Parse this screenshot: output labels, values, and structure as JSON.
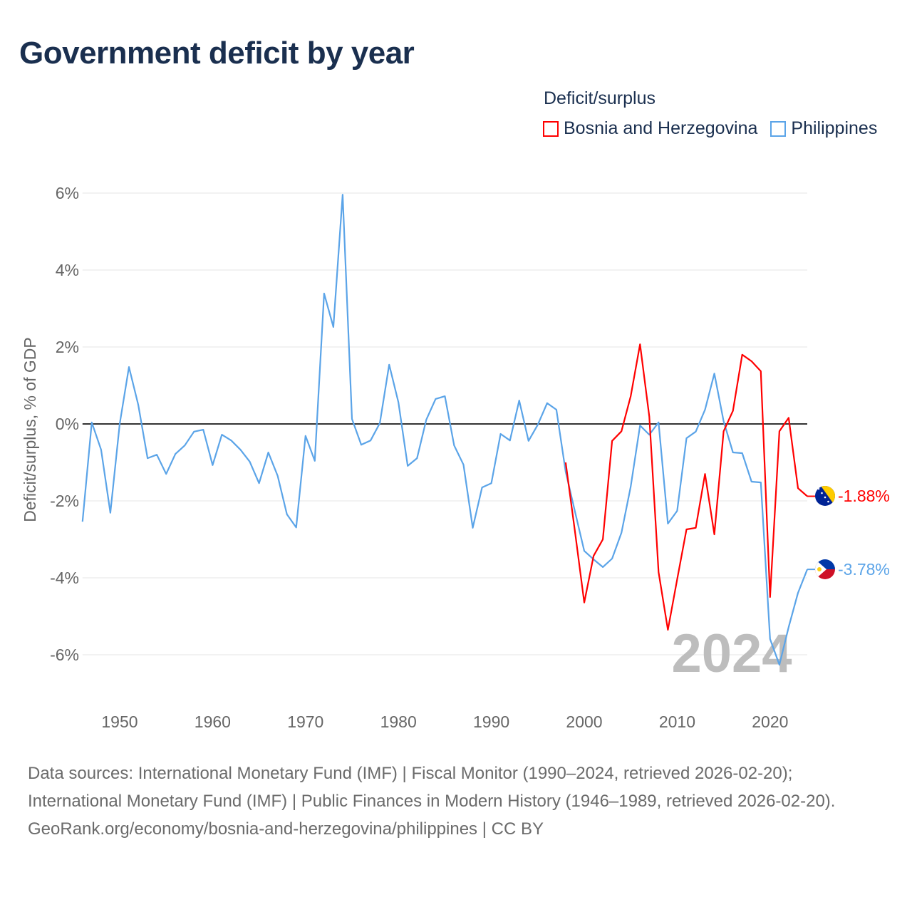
{
  "title": "Government deficit by year",
  "legend": {
    "title": "Deficit/surplus",
    "items": [
      {
        "label": "Bosnia and Herzegovina",
        "color": "#ff0000"
      },
      {
        "label": "Philippines",
        "color": "#5ba4e8"
      }
    ]
  },
  "chart_data": {
    "type": "line",
    "title": "Government deficit by year",
    "xlabel": "",
    "ylabel": "Deficit/surplus, % of GDP",
    "xlim": [
      1946,
      2024
    ],
    "ylim": [
      -7,
      6
    ],
    "x_ticks": [
      1950,
      1960,
      1970,
      1980,
      1990,
      2000,
      2010,
      2020
    ],
    "x_tick_labels": [
      "1950",
      "1960",
      "1970",
      "1980",
      "1990",
      "2000",
      "2010",
      "2020"
    ],
    "y_ticks": [
      6,
      4,
      2,
      0,
      -2,
      -4,
      -6
    ],
    "y_tick_labels": [
      "6%",
      "4%",
      "2%",
      "0%",
      "-2%",
      "-4%",
      "-6%"
    ],
    "grid": true,
    "year_watermark": "2024",
    "series": [
      {
        "name": "Bosnia and Herzegovina",
        "color": "#ff0000",
        "end_label": "-1.88%",
        "x": [
          1998,
          1999,
          2000,
          2001,
          2002,
          2003,
          2004,
          2005,
          2006,
          2007,
          2008,
          2009,
          2010,
          2011,
          2012,
          2013,
          2014,
          2015,
          2016,
          2017,
          2018,
          2019,
          2020,
          2021,
          2022,
          2023,
          2024
        ],
        "values": [
          -1.0,
          -2.8,
          -4.64,
          -3.43,
          -3.0,
          -0.44,
          -0.19,
          0.72,
          2.07,
          0.19,
          -3.85,
          -5.35,
          -4.04,
          -2.74,
          -2.7,
          -1.3,
          -2.87,
          -0.19,
          0.34,
          1.8,
          1.63,
          1.37,
          -4.5,
          -0.19,
          0.16,
          -1.67,
          -1.88
        ]
      },
      {
        "name": "Philippines",
        "color": "#5ba4e8",
        "end_label": "-3.78%",
        "x": [
          1946,
          1947,
          1948,
          1949,
          1950,
          1951,
          1952,
          1953,
          1954,
          1955,
          1956,
          1957,
          1958,
          1959,
          1960,
          1961,
          1962,
          1963,
          1964,
          1965,
          1966,
          1967,
          1968,
          1969,
          1970,
          1971,
          1972,
          1973,
          1974,
          1975,
          1976,
          1977,
          1978,
          1979,
          1980,
          1981,
          1982,
          1983,
          1984,
          1985,
          1986,
          1987,
          1988,
          1989,
          1990,
          1991,
          1992,
          1993,
          1994,
          1995,
          1996,
          1997,
          1998,
          1999,
          2000,
          2001,
          2002,
          2003,
          2004,
          2005,
          2006,
          2007,
          2008,
          2009,
          2010,
          2011,
          2012,
          2013,
          2014,
          2015,
          2016,
          2017,
          2018,
          2019,
          2020,
          2021,
          2022,
          2023,
          2024
        ],
        "values": [
          -2.54,
          0.04,
          -0.67,
          -2.31,
          0.0,
          1.48,
          0.5,
          -0.89,
          -0.8,
          -1.3,
          -0.78,
          -0.56,
          -0.2,
          -0.15,
          -1.07,
          -0.28,
          -0.43,
          -0.67,
          -0.98,
          -1.54,
          -0.74,
          -1.35,
          -2.35,
          -2.69,
          -0.31,
          -0.96,
          3.39,
          2.52,
          5.96,
          0.13,
          -0.54,
          -0.43,
          0.02,
          1.54,
          0.56,
          -1.09,
          -0.89,
          0.11,
          0.65,
          0.72,
          -0.56,
          -1.06,
          -2.7,
          -1.65,
          -1.54,
          -0.26,
          -0.43,
          0.61,
          -0.44,
          -0.02,
          0.54,
          0.37,
          -1.24,
          -2.28,
          -3.3,
          -3.52,
          -3.72,
          -3.5,
          -2.83,
          -1.63,
          -0.04,
          -0.28,
          0.04,
          -2.59,
          -2.26,
          -0.37,
          -0.2,
          0.37,
          1.31,
          0.07,
          -0.74,
          -0.76,
          -1.5,
          -1.52,
          -5.59,
          -6.26,
          -5.28,
          -4.39,
          -3.78
        ]
      }
    ]
  },
  "footer": {
    "sources": "Data sources: International Monetary Fund (IMF) | Fiscal Monitor (1990–2024, retrieved 2026-02-20); International Monetary Fund (IMF) | Public Finances in Modern History (1946–1989, retrieved 2026-02-20).",
    "credit": "GeoRank.org/economy/bosnia-and-herzegovina/philippines | CC BY"
  }
}
